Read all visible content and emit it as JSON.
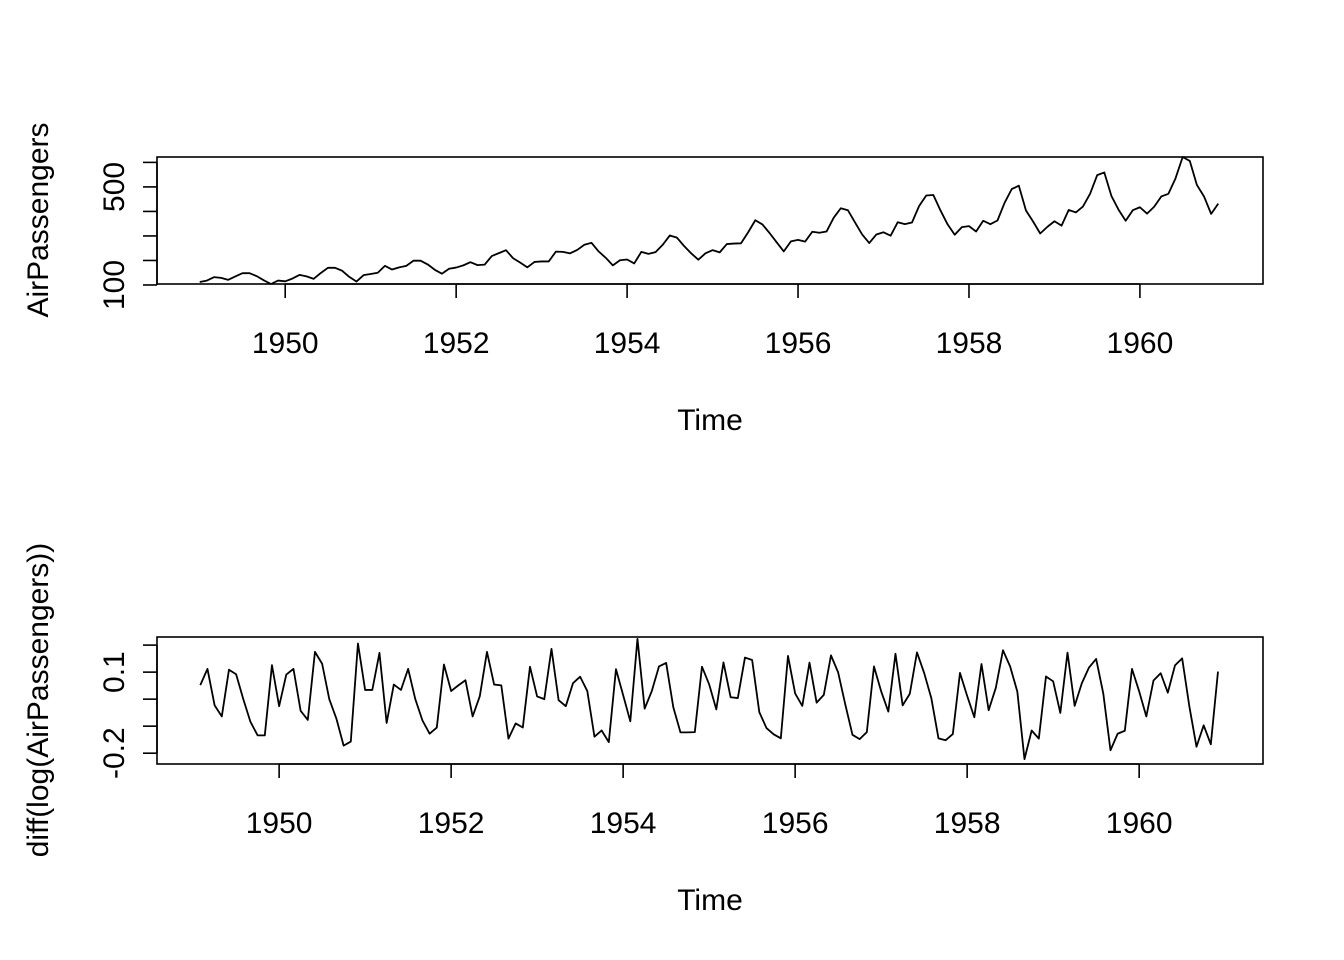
{
  "figure": {
    "panels": [
      {
        "xlabel": "Time",
        "ylabel": "AirPassengers"
      },
      {
        "xlabel": "Time",
        "ylabel": "diff(log(AirPassengers))"
      }
    ]
  },
  "chart_data": [
    {
      "type": "line",
      "title": "",
      "xlabel": "Time",
      "ylabel": "AirPassengers",
      "xlim": [
        1948.5,
        1961.44
      ],
      "ylim": [
        104,
        622
      ],
      "x_ticks": [
        1950,
        1952,
        1954,
        1956,
        1958,
        1960
      ],
      "y_ticks": [
        100,
        200,
        300,
        400,
        500,
        600
      ],
      "y_tick_labels": [
        "100",
        "",
        "",
        "",
        "500",
        ""
      ],
      "grid": false,
      "x_start": 1949,
      "x_step": 0.0833333,
      "series": [
        {
          "values": [
            112,
            118,
            132,
            129,
            121,
            135,
            148,
            148,
            136,
            119,
            104,
            118,
            115,
            126,
            141,
            135,
            125,
            149,
            170,
            170,
            158,
            133,
            114,
            140,
            145,
            150,
            178,
            163,
            172,
            178,
            199,
            199,
            184,
            162,
            146,
            166,
            171,
            180,
            193,
            181,
            183,
            218,
            230,
            242,
            209,
            191,
            172,
            194,
            196,
            196,
            236,
            235,
            229,
            243,
            264,
            272,
            237,
            211,
            180,
            201,
            204,
            188,
            235,
            227,
            234,
            264,
            302,
            293,
            259,
            229,
            203,
            229,
            242,
            233,
            267,
            269,
            270,
            315,
            364,
            347,
            312,
            274,
            237,
            278,
            284,
            277,
            317,
            313,
            318,
            374,
            413,
            405,
            355,
            306,
            271,
            306,
            315,
            301,
            356,
            348,
            355,
            422,
            465,
            467,
            404,
            347,
            305,
            336,
            340,
            318,
            362,
            348,
            363,
            435,
            491,
            505,
            404,
            359,
            310,
            337,
            360,
            342,
            406,
            396,
            420,
            472,
            548,
            559,
            463,
            407,
            362,
            405,
            417,
            391,
            419,
            461,
            472,
            535,
            622,
            606,
            508,
            461,
            390,
            432
          ]
        }
      ]
    },
    {
      "type": "line",
      "title": "",
      "xlabel": "Time",
      "ylabel": "diff(log(AirPassengers))",
      "xlim": [
        1948.58,
        1961.44
      ],
      "ylim": [
        -0.24,
        0.23
      ],
      "x_ticks": [
        1950,
        1952,
        1954,
        1956,
        1958,
        1960
      ],
      "y_ticks": [
        -0.2,
        -0.1,
        0.0,
        0.1,
        0.2
      ],
      "y_tick_labels": [
        "-0.2",
        "",
        "",
        "0.1",
        ""
      ],
      "grid": false,
      "x_start": 1949.0833333,
      "x_step": 0.0833333,
      "series": [
        {
          "values": [
            0.052,
            0.112,
            -0.023,
            -0.064,
            0.109,
            0.092,
            0.0,
            -0.084,
            -0.134,
            -0.134,
            0.126,
            -0.026,
            0.091,
            0.112,
            -0.043,
            -0.077,
            0.175,
            0.131,
            0.0,
            -0.073,
            -0.172,
            -0.157,
            0.206,
            0.034,
            0.034,
            0.171,
            -0.088,
            0.054,
            0.034,
            0.112,
            0.0,
            -0.079,
            -0.128,
            -0.105,
            0.128,
            0.03,
            0.051,
            0.07,
            -0.064,
            0.011,
            0.175,
            0.054,
            0.051,
            -0.146,
            -0.09,
            -0.105,
            0.12,
            0.01,
            0.0,
            0.186,
            -0.004,
            -0.026,
            0.059,
            0.083,
            0.03,
            -0.139,
            -0.116,
            -0.159,
            0.111,
            0.015,
            -0.082,
            0.223,
            -0.035,
            0.03,
            0.121,
            0.134,
            -0.03,
            -0.123,
            -0.123,
            -0.122,
            0.12,
            0.055,
            -0.038,
            0.136,
            0.007,
            0.004,
            0.154,
            0.145,
            -0.048,
            -0.107,
            -0.13,
            -0.145,
            0.16,
            0.021,
            -0.025,
            0.135,
            -0.013,
            0.016,
            0.162,
            0.099,
            -0.02,
            -0.132,
            -0.148,
            -0.122,
            0.121,
            0.029,
            -0.046,
            0.168,
            -0.023,
            0.02,
            0.173,
            0.097,
            0.004,
            -0.145,
            -0.152,
            -0.129,
            0.097,
            0.012,
            -0.067,
            0.13,
            -0.041,
            0.042,
            0.181,
            0.121,
            0.028,
            -0.222,
            -0.116,
            -0.146,
            0.084,
            0.066,
            -0.051,
            0.172,
            -0.025,
            0.059,
            0.117,
            0.149,
            0.02,
            -0.189,
            -0.128,
            -0.117,
            0.112,
            0.029,
            -0.064,
            0.069,
            0.096,
            0.024,
            0.125,
            0.151,
            -0.026,
            -0.176,
            -0.097,
            -0.167,
            0.102
          ]
        }
      ]
    }
  ]
}
